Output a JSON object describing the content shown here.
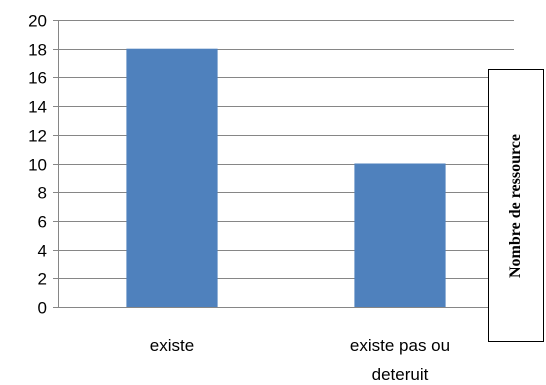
{
  "chart_data": {
    "type": "bar",
    "categories": [
      "existe",
      "existe pas ou deteruit"
    ],
    "category_lines": [
      [
        "existe"
      ],
      [
        "existe pas ou",
        "deteruit"
      ]
    ],
    "values": [
      18,
      10
    ],
    "ylim": [
      0,
      20
    ],
    "yticks": [
      0,
      2,
      4,
      6,
      8,
      10,
      12,
      14,
      16,
      18,
      20
    ],
    "grid": true,
    "bar_color": "#4F81BD",
    "grid_color": "#868686",
    "side_label": "Nombre de ressource"
  }
}
